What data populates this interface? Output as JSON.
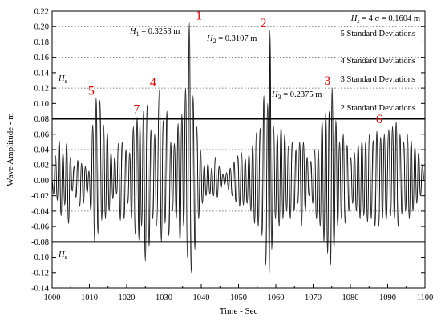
{
  "chart_data": {
    "type": "line",
    "title": "",
    "xlabel": "Time - Sec",
    "ylabel": "Wave Amplitude - m",
    "xlim": [
      1000,
      1100
    ],
    "ylim": [
      -0.14,
      0.22
    ],
    "x_ticks": [
      "1000",
      "1010",
      "1020",
      "1030",
      "1040",
      "1050",
      "1060",
      "1070",
      "1080",
      "1090",
      "1100"
    ],
    "y_ticks": [
      "-0.14",
      "-0.12",
      "-0.10",
      "-0.08",
      "-0.06",
      "-0.04",
      "-0.02",
      "0.00",
      "0.02",
      "0.04",
      "0.06",
      "0.08",
      "0.10",
      "0.12",
      "0.14",
      "0.16",
      "0.18",
      "0.20",
      "0.22"
    ],
    "grid": "dotted horizontal",
    "reference_lines": [
      {
        "y": 0.08,
        "style": "solid",
        "label": "2 Standard Deviations"
      },
      {
        "y": -0.08,
        "style": "solid",
        "label": ""
      },
      {
        "y": 0.12,
        "style": "dotted",
        "label": "3 Standard Deviations"
      },
      {
        "y": 0.16,
        "style": "dotted",
        "label": "4 Standard Deviations"
      },
      {
        "y": 0.2,
        "style": "dotted",
        "label": "5 Standard Deviations"
      },
      {
        "y": 0.0,
        "style": "thin",
        "label": ""
      }
    ],
    "hs_labels": [
      "H",
      "H"
    ],
    "hs_sub": "s",
    "hs_equation": {
      "left": "H",
      "sub": "s",
      "right": " = 4 σ = 0.1604 m"
    },
    "height_annotations": [
      {
        "main": "H",
        "sub": "1",
        "rest": " = 0.3253 m"
      },
      {
        "main": "H",
        "sub": "2",
        "rest": " = 0.3107 m"
      },
      {
        "main": "H",
        "sub": "3",
        "rest": " = 0.2375 m"
      }
    ],
    "wave_markers": [
      {
        "label": "1",
        "x": 1037.2,
        "y": 0.205
      },
      {
        "label": "2",
        "x": 1058.4,
        "y": 0.195
      },
      {
        "label": "3",
        "x": 1074.7,
        "y": 0.12
      },
      {
        "label": "4",
        "x": 1028.8,
        "y": 0.118
      },
      {
        "label": "5",
        "x": 1011.8,
        "y": 0.107
      },
      {
        "label": "6",
        "x": 1090.3,
        "y": 0.066
      },
      {
        "label": "7",
        "x": 1023.5,
        "y": 0.083
      }
    ],
    "series": [
      {
        "peaks": [
          [
            1000.4,
            -0.018
          ],
          [
            1000.9,
            0.032
          ],
          [
            1001.4,
            -0.026
          ],
          [
            1001.9,
            0.052
          ],
          [
            1002.4,
            -0.046
          ],
          [
            1002.9,
            0.036
          ],
          [
            1003.4,
            -0.032
          ],
          [
            1003.9,
            0.048
          ],
          [
            1004.4,
            -0.056
          ],
          [
            1004.9,
            0.03
          ],
          [
            1005.4,
            -0.014
          ],
          [
            1005.9,
            0.018
          ],
          [
            1006.4,
            -0.022
          ],
          [
            1006.9,
            0.026
          ],
          [
            1007.4,
            -0.034
          ],
          [
            1007.9,
            0.022
          ],
          [
            1008.4,
            -0.03
          ],
          [
            1008.9,
            0.018
          ],
          [
            1009.4,
            -0.016
          ],
          [
            1009.9,
            0.012
          ],
          [
            1010.4,
            -0.04
          ],
          [
            1010.9,
            0.072
          ],
          [
            1011.4,
            -0.08
          ],
          [
            1011.8,
            0.107
          ],
          [
            1012.3,
            -0.07
          ],
          [
            1012.8,
            0.104
          ],
          [
            1013.3,
            -0.052
          ],
          [
            1013.8,
            0.072
          ],
          [
            1014.3,
            -0.05
          ],
          [
            1014.8,
            0.062
          ],
          [
            1015.3,
            -0.04
          ],
          [
            1015.8,
            0.036
          ],
          [
            1016.3,
            -0.024
          ],
          [
            1016.8,
            0.03
          ],
          [
            1017.3,
            -0.018
          ],
          [
            1017.8,
            0.048
          ],
          [
            1018.3,
            -0.052
          ],
          [
            1018.8,
            0.05
          ],
          [
            1019.3,
            -0.05
          ],
          [
            1019.8,
            0.04
          ],
          [
            1020.3,
            -0.03
          ],
          [
            1020.8,
            0.036
          ],
          [
            1021.3,
            -0.05
          ],
          [
            1021.8,
            0.07
          ],
          [
            1022.3,
            -0.07
          ],
          [
            1022.8,
            0.082
          ],
          [
            1023.3,
            -0.078
          ],
          [
            1023.5,
            0.076
          ],
          [
            1024.0,
            -0.06
          ],
          [
            1024.5,
            0.09
          ],
          [
            1025.0,
            -0.105
          ],
          [
            1025.5,
            0.098
          ],
          [
            1026.0,
            -0.086
          ],
          [
            1026.5,
            0.066
          ],
          [
            1027.0,
            -0.05
          ],
          [
            1027.5,
            0.06
          ],
          [
            1028.0,
            -0.06
          ],
          [
            1028.8,
            0.118
          ],
          [
            1029.3,
            -0.08
          ],
          [
            1029.8,
            0.078
          ],
          [
            1030.3,
            -0.056
          ],
          [
            1030.8,
            0.09
          ],
          [
            1031.3,
            -0.072
          ],
          [
            1031.8,
            0.05
          ],
          [
            1032.3,
            -0.04
          ],
          [
            1032.8,
            0.048
          ],
          [
            1033.3,
            -0.05
          ],
          [
            1033.8,
            0.074
          ],
          [
            1034.3,
            -0.08
          ],
          [
            1034.8,
            0.086
          ],
          [
            1035.3,
            -0.06
          ],
          [
            1035.8,
            0.12
          ],
          [
            1036.3,
            -0.1
          ],
          [
            1036.8,
            0.205
          ],
          [
            1037.3,
            -0.12
          ],
          [
            1037.8,
            0.11
          ],
          [
            1038.3,
            -0.09
          ],
          [
            1038.8,
            0.07
          ],
          [
            1039.3,
            -0.05
          ],
          [
            1039.8,
            0.04
          ],
          [
            1040.3,
            -0.03
          ],
          [
            1040.8,
            0.02
          ],
          [
            1041.3,
            -0.02
          ],
          [
            1041.8,
            0.022
          ],
          [
            1042.3,
            -0.018
          ],
          [
            1042.8,
            0.016
          ],
          [
            1043.3,
            -0.02
          ],
          [
            1043.8,
            0.03
          ],
          [
            1044.3,
            -0.022
          ],
          [
            1044.8,
            0.018
          ],
          [
            1045.3,
            -0.01
          ],
          [
            1045.8,
            0.008
          ],
          [
            1046.3,
            -0.006
          ],
          [
            1046.8,
            0.01
          ],
          [
            1047.3,
            -0.012
          ],
          [
            1047.8,
            0.016
          ],
          [
            1048.3,
            -0.02
          ],
          [
            1048.8,
            0.024
          ],
          [
            1049.3,
            -0.028
          ],
          [
            1049.8,
            0.032
          ],
          [
            1050.3,
            -0.034
          ],
          [
            1050.8,
            0.036
          ],
          [
            1051.3,
            -0.032
          ],
          [
            1051.8,
            0.028
          ],
          [
            1052.3,
            -0.03
          ],
          [
            1052.8,
            0.034
          ],
          [
            1053.3,
            -0.04
          ],
          [
            1053.8,
            0.046
          ],
          [
            1054.3,
            -0.056
          ],
          [
            1054.8,
            0.062
          ],
          [
            1055.3,
            -0.06
          ],
          [
            1055.8,
            0.068
          ],
          [
            1056.3,
            -0.072
          ],
          [
            1056.8,
            0.11
          ],
          [
            1057.3,
            -0.11
          ],
          [
            1057.8,
            0.1
          ],
          [
            1058.3,
            -0.12
          ],
          [
            1058.4,
            0.195
          ],
          [
            1058.9,
            -0.09
          ],
          [
            1059.4,
            0.07
          ],
          [
            1059.9,
            -0.05
          ],
          [
            1060.4,
            0.06
          ],
          [
            1060.9,
            -0.06
          ],
          [
            1061.4,
            0.07
          ],
          [
            1061.9,
            -0.05
          ],
          [
            1062.4,
            0.06
          ],
          [
            1062.9,
            -0.04
          ],
          [
            1063.4,
            0.045
          ],
          [
            1063.9,
            -0.05
          ],
          [
            1064.4,
            0.05
          ],
          [
            1064.9,
            -0.04
          ],
          [
            1065.4,
            0.04
          ],
          [
            1065.9,
            -0.03
          ],
          [
            1066.4,
            0.05
          ],
          [
            1066.9,
            -0.06
          ],
          [
            1067.4,
            0.05
          ],
          [
            1067.9,
            -0.04
          ],
          [
            1068.4,
            0.03
          ],
          [
            1068.9,
            -0.02
          ],
          [
            1069.4,
            0.025
          ],
          [
            1069.9,
            -0.03
          ],
          [
            1070.4,
            0.04
          ],
          [
            1070.9,
            -0.05
          ],
          [
            1071.4,
            0.04
          ],
          [
            1071.9,
            -0.06
          ],
          [
            1072.4,
            0.078
          ],
          [
            1072.9,
            -0.08
          ],
          [
            1073.4,
            0.09
          ],
          [
            1073.9,
            -0.095
          ],
          [
            1074.3,
            0.09
          ],
          [
            1074.7,
            -0.11
          ],
          [
            1075.1,
            0.12
          ],
          [
            1075.6,
            -0.09
          ],
          [
            1076.1,
            0.078
          ],
          [
            1076.6,
            -0.06
          ],
          [
            1077.1,
            0.05
          ],
          [
            1077.6,
            -0.05
          ],
          [
            1078.1,
            0.06
          ],
          [
            1078.6,
            -0.056
          ],
          [
            1079.1,
            0.046
          ],
          [
            1079.6,
            -0.04
          ],
          [
            1080.1,
            0.03
          ],
          [
            1080.6,
            -0.03
          ],
          [
            1081.1,
            0.036
          ],
          [
            1081.6,
            -0.04
          ],
          [
            1082.1,
            0.046
          ],
          [
            1082.6,
            -0.05
          ],
          [
            1083.1,
            0.052
          ],
          [
            1083.6,
            -0.046
          ],
          [
            1084.1,
            0.05
          ],
          [
            1084.6,
            -0.054
          ],
          [
            1085.1,
            0.06
          ],
          [
            1085.6,
            -0.05
          ],
          [
            1086.1,
            0.052
          ],
          [
            1086.6,
            -0.06
          ],
          [
            1087.1,
            0.064
          ],
          [
            1087.6,
            -0.06
          ],
          [
            1088.1,
            0.056
          ],
          [
            1088.6,
            -0.05
          ],
          [
            1089.1,
            0.06
          ],
          [
            1089.6,
            -0.052
          ],
          [
            1090.3,
            0.066
          ],
          [
            1090.8,
            -0.046
          ],
          [
            1091.3,
            0.07
          ],
          [
            1091.8,
            -0.05
          ],
          [
            1092.3,
            0.076
          ],
          [
            1092.8,
            -0.06
          ],
          [
            1093.3,
            0.06
          ],
          [
            1093.8,
            -0.044
          ],
          [
            1094.3,
            0.05
          ],
          [
            1094.8,
            -0.04
          ],
          [
            1095.3,
            0.06
          ],
          [
            1095.8,
            -0.05
          ],
          [
            1096.3,
            0.052
          ],
          [
            1096.8,
            -0.04
          ],
          [
            1097.3,
            0.044
          ],
          [
            1097.8,
            -0.03
          ],
          [
            1098.3,
            0.036
          ],
          [
            1098.8,
            -0.02
          ],
          [
            1099.3,
            0.02
          ],
          [
            1099.8,
            0.0
          ]
        ]
      }
    ]
  }
}
